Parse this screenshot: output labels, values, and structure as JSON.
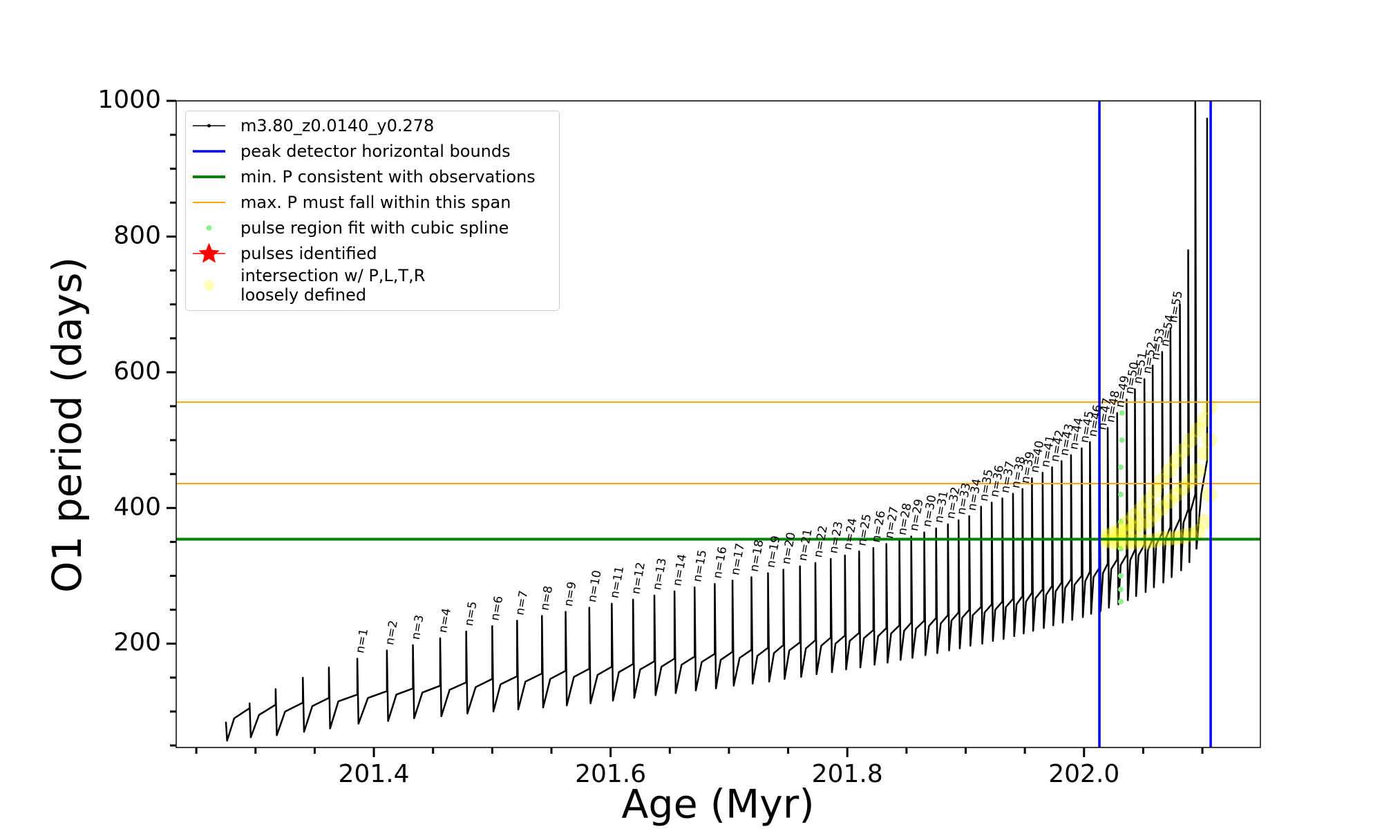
{
  "chart_data": {
    "type": "line",
    "xlabel": "Age (Myr)",
    "ylabel": "O1 period (days)",
    "xlim": [
      201.233,
      202.149
    ],
    "ylim": [
      47,
      1000
    ],
    "xticks": [
      201.4,
      201.6,
      201.8,
      {
        "value": 202.0,
        "label": "202.0"
      }
    ],
    "xminorticks": [
      201.25,
      201.3,
      201.35,
      201.45,
      201.5,
      201.55,
      201.65,
      201.7,
      201.75,
      201.85,
      201.9,
      201.95,
      202.05,
      202.1
    ],
    "yticks": [
      200,
      400,
      600,
      800,
      1000
    ],
    "yminorticks": [
      50,
      100,
      150,
      250,
      300,
      350,
      450,
      500,
      550,
      650,
      700,
      750,
      850,
      900,
      950
    ],
    "legend": "upper left",
    "series": [
      {
        "name": "m3.80_z0.0140_y0.278",
        "kind": "line",
        "color": "#000000",
        "linewidth": 2.5,
        "x": [
          201.275,
          201.276,
          201.282,
          201.295,
          201.295,
          201.296,
          201.303,
          201.317,
          201.317,
          201.318,
          201.325,
          201.34,
          201.34,
          201.341,
          201.348,
          201.362,
          201.362,
          201.363,
          201.37,
          201.386,
          201.386,
          201.387,
          201.395,
          201.411,
          201.411,
          201.412,
          201.419,
          201.433,
          201.433,
          201.434,
          201.441,
          201.456,
          201.456,
          201.457,
          201.464,
          201.478,
          201.478,
          201.479,
          201.486,
          201.5,
          201.5,
          201.501,
          201.507,
          201.521,
          201.521,
          201.522,
          201.528,
          201.542,
          201.542,
          201.543,
          201.549,
          201.562,
          201.562,
          201.563,
          201.569,
          201.582,
          201.582,
          201.583,
          201.589,
          201.601,
          201.601,
          201.602,
          201.607,
          201.619,
          201.619,
          201.62,
          201.625,
          201.637,
          201.637,
          201.638,
          201.643,
          201.654,
          201.654,
          201.655,
          201.66,
          201.671,
          201.671,
          201.672,
          201.677,
          201.688,
          201.688,
          201.689,
          201.693,
          201.703,
          201.703,
          201.704,
          201.709,
          201.719,
          201.719,
          201.72,
          201.724,
          201.733,
          201.733,
          201.734,
          201.738,
          201.746,
          201.746,
          201.747,
          201.751,
          201.76,
          201.76,
          201.761,
          201.765,
          201.773,
          201.773,
          201.774,
          201.778,
          201.786,
          201.786,
          201.787,
          201.79,
          201.798,
          201.798,
          201.799,
          201.802,
          201.81,
          201.81,
          201.811,
          201.814,
          201.822,
          201.822,
          201.823,
          201.826,
          201.833,
          201.833,
          201.834,
          201.837,
          201.844,
          201.844,
          201.845,
          201.848,
          201.854,
          201.854,
          201.855,
          201.858,
          201.865,
          201.865,
          201.866,
          201.869,
          201.875,
          201.875,
          201.876,
          201.879,
          201.885,
          201.885,
          201.886,
          201.888,
          201.894,
          201.894,
          201.895,
          201.897,
          201.903,
          201.903,
          201.904,
          201.906,
          201.913,
          201.913,
          201.914,
          201.916,
          201.922,
          201.922,
          201.923,
          201.925,
          201.931,
          201.931,
          201.932,
          201.934,
          201.94,
          201.94,
          201.941,
          201.943,
          201.948,
          201.948,
          201.949,
          201.951,
          201.956,
          201.956,
          201.957,
          201.959,
          201.965,
          201.965,
          201.966,
          201.968,
          201.973,
          201.973,
          201.974,
          201.976,
          201.981,
          201.981,
          201.982,
          201.984,
          201.989,
          201.989,
          201.99,
          201.992,
          201.998,
          201.998,
          201.999,
          202.001,
          202.005,
          202.005,
          202.006,
          202.008,
          202.013,
          202.013,
          202.014,
          202.016,
          202.02,
          202.02,
          202.021,
          202.023,
          202.028,
          202.028,
          202.029,
          202.031,
          202.036,
          202.036,
          202.037,
          202.039,
          202.043,
          202.043,
          202.044,
          202.046,
          202.051,
          202.051,
          202.052,
          202.054,
          202.058,
          202.058,
          202.059,
          202.061,
          202.066,
          202.066,
          202.067,
          202.069,
          202.073,
          202.073,
          202.074,
          202.076,
          202.081,
          202.081,
          202.082,
          202.084,
          202.088,
          202.088,
          202.089,
          202.09,
          202.094,
          202.094,
          202.095,
          202.099,
          202.104,
          202.104
        ],
        "values": [
          85,
          57,
          90,
          105,
          112,
          62,
          95,
          110,
          133,
          65,
          100,
          113,
          150,
          70,
          108,
          120,
          165,
          75,
          115,
          125,
          178,
          82,
          120,
          130,
          190,
          86,
          125,
          134,
          198,
          90,
          128,
          138,
          208,
          93,
          132,
          143,
          218,
          97,
          136,
          148,
          226,
          100,
          140,
          152,
          234,
          103,
          144,
          156,
          241,
          106,
          148,
          160,
          247,
          109,
          151,
          163,
          253,
          112,
          154,
          166,
          259,
          116,
          158,
          170,
          265,
          120,
          162,
          174,
          271,
          124,
          166,
          178,
          277,
          127,
          169,
          181,
          283,
          131,
          173,
          185,
          288,
          134,
          176,
          188,
          293,
          138,
          179,
          191,
          298,
          141,
          182,
          194,
          304,
          144,
          186,
          198,
          309,
          148,
          190,
          202,
          314,
          151,
          193,
          205,
          319,
          155,
          197,
          209,
          325,
          158,
          200,
          212,
          330,
          162,
          204,
          216,
          336,
          165,
          208,
          220,
          341,
          169,
          211,
          223,
          347,
          172,
          215,
          227,
          352,
          176,
          219,
          231,
          358,
          179,
          222,
          234,
          364,
          183,
          226,
          238,
          370,
          186,
          230,
          242,
          376,
          190,
          234,
          246,
          382,
          193,
          238,
          250,
          388,
          197,
          242,
          254,
          402,
          200,
          246,
          258,
          408,
          204,
          250,
          262,
          414,
          207,
          254,
          266,
          421,
          211,
          258,
          270,
          428,
          215,
          262,
          275,
          444,
          219,
          267,
          280,
          452,
          223,
          272,
          285,
          460,
          227,
          277,
          290,
          469,
          231,
          282,
          295,
          478,
          235,
          287,
          300,
          488,
          239,
          292,
          306,
          497,
          244,
          298,
          312,
          507,
          248,
          304,
          318,
          518,
          253,
          310,
          324,
          540,
          258,
          316,
          331,
          560,
          264,
          323,
          338,
          575,
          270,
          330,
          346,
          590,
          276,
          338,
          354,
          610,
          283,
          346,
          363,
          630,
          290,
          355,
          372,
          665,
          298,
          365,
          384,
          700,
          308,
          378,
          398,
          780,
          320,
          395,
          420,
          1000,
          340,
          420,
          470,
          975
        ]
      },
      {
        "name": "peak detector horizontal bounds",
        "kind": "vline",
        "color": "#0000ff",
        "linewidth": 3.5,
        "values": [
          202.013,
          202.107
        ]
      },
      {
        "name": "min. P consistent with observations",
        "kind": "hline",
        "color": "#008000",
        "linewidth": 4,
        "values": [
          354
        ]
      },
      {
        "name": "max. P must fall within this span",
        "kind": "hline",
        "color": "#ffa500",
        "linewidth": 2,
        "values": [
          436,
          556
        ]
      },
      {
        "name": "pulse region fit with cubic spline",
        "kind": "points",
        "color": "#90ee90",
        "size": 4,
        "alpha": 1,
        "x": [
          202.031,
          202.031,
          202.031,
          202.031,
          202.031,
          202.031,
          202.031,
          202.032,
          202.032
        ],
        "values": [
          262,
          280,
          300,
          340,
          380,
          420,
          460,
          500,
          540
        ]
      },
      {
        "name": "pulses identified",
        "kind": "points",
        "marker": "star",
        "color": "#ff0000",
        "size": 14,
        "alpha": 1,
        "x": [],
        "values": []
      },
      {
        "name": "intersection w/ P,L,T,R\nloosely defined",
        "kind": "points",
        "color": "#ffff00",
        "size": 11,
        "alpha": 0.3,
        "x": [
          202.018,
          202.018,
          202.024,
          202.024,
          202.03,
          202.03,
          202.03,
          202.036,
          202.036,
          202.036,
          202.042,
          202.042,
          202.042,
          202.048,
          202.048,
          202.048,
          202.054,
          202.054,
          202.054,
          202.06,
          202.06,
          202.06,
          202.066,
          202.066,
          202.066,
          202.072,
          202.072,
          202.072,
          202.078,
          202.078,
          202.078,
          202.084,
          202.084,
          202.084,
          202.09,
          202.09,
          202.09,
          202.096,
          202.096,
          202.096,
          202.102,
          202.102,
          202.102,
          202.106,
          202.106,
          202.106
        ],
        "values": [
          352,
          358,
          350,
          362,
          350,
          360,
          368,
          350,
          365,
          378,
          350,
          370,
          388,
          352,
          375,
          398,
          350,
          380,
          410,
          352,
          390,
          425,
          355,
          400,
          440,
          355,
          410,
          455,
          356,
          420,
          470,
          358,
          430,
          485,
          360,
          440,
          500,
          365,
          455,
          515,
          380,
          480,
          530,
          420,
          500,
          548
        ]
      }
    ],
    "annotations": [
      {
        "text": "n=1",
        "x": 201.386,
        "y": 178
      },
      {
        "text": "n=2",
        "x": 201.411,
        "y": 190
      },
      {
        "text": "n=3",
        "x": 201.433,
        "y": 198
      },
      {
        "text": "n=4",
        "x": 201.456,
        "y": 208
      },
      {
        "text": "n=5",
        "x": 201.478,
        "y": 218
      },
      {
        "text": "n=6",
        "x": 201.5,
        "y": 226
      },
      {
        "text": "n=7",
        "x": 201.521,
        "y": 234
      },
      {
        "text": "n=8",
        "x": 201.542,
        "y": 241
      },
      {
        "text": "n=9",
        "x": 201.562,
        "y": 247
      },
      {
        "text": "n=10",
        "x": 201.582,
        "y": 253
      },
      {
        "text": "n=11",
        "x": 201.601,
        "y": 259
      },
      {
        "text": "n=12",
        "x": 201.619,
        "y": 265
      },
      {
        "text": "n=13",
        "x": 201.637,
        "y": 271
      },
      {
        "text": "n=14",
        "x": 201.654,
        "y": 277
      },
      {
        "text": "n=15",
        "x": 201.671,
        "y": 283
      },
      {
        "text": "n=16",
        "x": 201.688,
        "y": 288
      },
      {
        "text": "n=17",
        "x": 201.703,
        "y": 293
      },
      {
        "text": "n=18",
        "x": 201.719,
        "y": 298
      },
      {
        "text": "n=19",
        "x": 201.733,
        "y": 304
      },
      {
        "text": "n=20",
        "x": 201.746,
        "y": 309
      },
      {
        "text": "n=21",
        "x": 201.76,
        "y": 314
      },
      {
        "text": "n=22",
        "x": 201.773,
        "y": 319
      },
      {
        "text": "n=23",
        "x": 201.786,
        "y": 325
      },
      {
        "text": "n=24",
        "x": 201.798,
        "y": 330
      },
      {
        "text": "n=25",
        "x": 201.81,
        "y": 336
      },
      {
        "text": "n=26",
        "x": 201.822,
        "y": 341
      },
      {
        "text": "n=27",
        "x": 201.833,
        "y": 347
      },
      {
        "text": "n=28",
        "x": 201.844,
        "y": 352
      },
      {
        "text": "n=29",
        "x": 201.854,
        "y": 358
      },
      {
        "text": "n=30",
        "x": 201.865,
        "y": 364
      },
      {
        "text": "n=31",
        "x": 201.875,
        "y": 370
      },
      {
        "text": "n=32",
        "x": 201.885,
        "y": 376
      },
      {
        "text": "n=33",
        "x": 201.894,
        "y": 382
      },
      {
        "text": "n=34",
        "x": 201.903,
        "y": 388
      },
      {
        "text": "n=35",
        "x": 201.913,
        "y": 402
      },
      {
        "text": "n=36",
        "x": 201.922,
        "y": 408
      },
      {
        "text": "n=37",
        "x": 201.931,
        "y": 414
      },
      {
        "text": "n=38",
        "x": 201.94,
        "y": 421
      },
      {
        "text": "n=39",
        "x": 201.948,
        "y": 428
      },
      {
        "text": "n=40",
        "x": 201.956,
        "y": 444
      },
      {
        "text": "n=41",
        "x": 201.965,
        "y": 452
      },
      {
        "text": "n=42",
        "x": 201.973,
        "y": 460
      },
      {
        "text": "n=43",
        "x": 201.981,
        "y": 469
      },
      {
        "text": "n=44",
        "x": 201.989,
        "y": 478
      },
      {
        "text": "n=45",
        "x": 201.998,
        "y": 488
      },
      {
        "text": "n=46",
        "x": 202.005,
        "y": 497
      },
      {
        "text": "n=47",
        "x": 202.013,
        "y": 507
      },
      {
        "text": "n=48",
        "x": 202.02,
        "y": 518
      },
      {
        "text": "n=49",
        "x": 202.028,
        "y": 540
      },
      {
        "text": "n=50",
        "x": 202.036,
        "y": 560
      },
      {
        "text": "n=51",
        "x": 202.043,
        "y": 575
      },
      {
        "text": "n=52",
        "x": 202.051,
        "y": 590
      },
      {
        "text": "n=53",
        "x": 202.058,
        "y": 610
      },
      {
        "text": "n=54",
        "x": 202.066,
        "y": 630
      },
      {
        "text": "n=55",
        "x": 202.073,
        "y": 665
      }
    ]
  }
}
